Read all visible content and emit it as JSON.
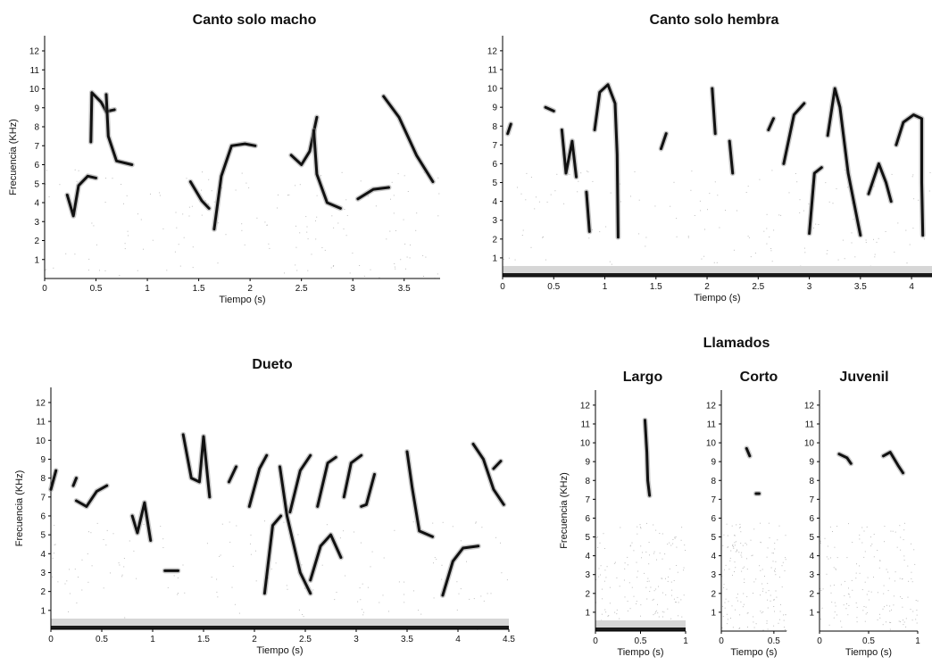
{
  "group_title": "Llamados",
  "chart_data": [
    {
      "type": "spectrogram",
      "title": "Canto solo macho",
      "xlabel": "Tiempo (s)",
      "ylabel": "Frecuencia (KHz)",
      "xlim": [
        0,
        3.85
      ],
      "ylim": [
        0,
        12.8
      ],
      "xticks": [
        "0",
        "0.5",
        "1",
        "1.5",
        "2",
        "2.5",
        "3",
        "3.5"
      ],
      "xtick_values": [
        0,
        0.5,
        1,
        1.5,
        2,
        2.5,
        3,
        3.5
      ],
      "yticks": [
        "1",
        "2",
        "3",
        "4",
        "5",
        "6",
        "7",
        "8",
        "9",
        "10",
        "11",
        "12"
      ],
      "noise_floor": false,
      "notes": [
        {
          "points": [
            [
              0.22,
              4.4
            ],
            [
              0.28,
              3.3
            ],
            [
              0.33,
              4.9
            ],
            [
              0.42,
              5.4
            ],
            [
              0.5,
              5.3
            ]
          ]
        },
        {
          "points": [
            [
              0.45,
              7.2
            ],
            [
              0.46,
              9.8
            ],
            [
              0.55,
              9.3
            ],
            [
              0.6,
              8.8
            ],
            [
              0.68,
              8.9
            ]
          ]
        },
        {
          "points": [
            [
              0.6,
              9.7
            ],
            [
              0.62,
              7.5
            ],
            [
              0.7,
              6.2
            ],
            [
              0.85,
              6.0
            ]
          ]
        },
        {
          "points": [
            [
              1.42,
              5.1
            ],
            [
              1.53,
              4.1
            ],
            [
              1.6,
              3.7
            ]
          ]
        },
        {
          "points": [
            [
              1.65,
              2.6
            ],
            [
              1.72,
              5.4
            ],
            [
              1.82,
              7.0
            ],
            [
              1.95,
              7.1
            ],
            [
              2.05,
              7.0
            ]
          ]
        },
        {
          "points": [
            [
              2.4,
              6.5
            ],
            [
              2.5,
              6.0
            ],
            [
              2.58,
              6.7
            ],
            [
              2.65,
              8.5
            ]
          ]
        },
        {
          "points": [
            [
              2.62,
              7.8
            ],
            [
              2.65,
              5.5
            ],
            [
              2.75,
              4.0
            ],
            [
              2.88,
              3.7
            ]
          ]
        },
        {
          "points": [
            [
              3.05,
              4.2
            ],
            [
              3.2,
              4.7
            ],
            [
              3.35,
              4.8
            ]
          ]
        },
        {
          "points": [
            [
              3.3,
              9.6
            ],
            [
              3.45,
              8.5
            ],
            [
              3.62,
              6.5
            ],
            [
              3.78,
              5.1
            ]
          ]
        }
      ]
    },
    {
      "type": "spectrogram",
      "title": "Canto solo hembra",
      "xlabel": "Tiempo (s)",
      "ylabel": "",
      "xlim": [
        0,
        4.2
      ],
      "ylim": [
        0,
        12.8
      ],
      "xticks": [
        "0",
        "0.5",
        "1",
        "1.5",
        "2",
        "2.5",
        "3",
        "3.5",
        "4"
      ],
      "xtick_values": [
        0,
        0.5,
        1,
        1.5,
        2,
        2.5,
        3,
        3.5,
        4
      ],
      "yticks": [
        "1",
        "2",
        "3",
        "4",
        "5",
        "6",
        "7",
        "8",
        "9",
        "10",
        "11",
        "12"
      ],
      "noise_floor": true,
      "notes": [
        {
          "points": [
            [
              0.05,
              7.6
            ],
            [
              0.08,
              8.1
            ]
          ]
        },
        {
          "points": [
            [
              0.42,
              9.0
            ],
            [
              0.5,
              8.8
            ]
          ]
        },
        {
          "points": [
            [
              0.58,
              7.8
            ],
            [
              0.62,
              5.5
            ],
            [
              0.68,
              7.2
            ],
            [
              0.72,
              5.3
            ]
          ]
        },
        {
          "points": [
            [
              0.82,
              4.5
            ],
            [
              0.85,
              2.4
            ]
          ]
        },
        {
          "points": [
            [
              0.9,
              7.8
            ],
            [
              0.95,
              9.8
            ],
            [
              1.03,
              10.2
            ],
            [
              1.1,
              9.2
            ],
            [
              1.12,
              6.5
            ],
            [
              1.13,
              2.1
            ]
          ]
        },
        {
          "points": [
            [
              1.55,
              6.8
            ],
            [
              1.6,
              7.6
            ]
          ]
        },
        {
          "points": [
            [
              2.05,
              10.0
            ],
            [
              2.08,
              7.6
            ]
          ]
        },
        {
          "points": [
            [
              2.22,
              7.2
            ],
            [
              2.25,
              5.5
            ]
          ]
        },
        {
          "points": [
            [
              2.6,
              7.8
            ],
            [
              2.65,
              8.4
            ]
          ]
        },
        {
          "points": [
            [
              2.75,
              6.0
            ],
            [
              2.85,
              8.6
            ],
            [
              2.95,
              9.2
            ]
          ]
        },
        {
          "points": [
            [
              3.0,
              2.3
            ],
            [
              3.05,
              5.5
            ],
            [
              3.12,
              5.8
            ]
          ]
        },
        {
          "points": [
            [
              3.18,
              7.5
            ],
            [
              3.25,
              10.0
            ],
            [
              3.3,
              9.0
            ],
            [
              3.38,
              5.5
            ],
            [
              3.5,
              2.2
            ]
          ]
        },
        {
          "points": [
            [
              3.58,
              4.4
            ],
            [
              3.68,
              6.0
            ],
            [
              3.75,
              5.0
            ],
            [
              3.8,
              4.0
            ]
          ]
        },
        {
          "points": [
            [
              3.85,
              7.0
            ],
            [
              3.92,
              8.2
            ],
            [
              4.02,
              8.6
            ],
            [
              4.1,
              8.4
            ],
            [
              4.1,
              5.0
            ],
            [
              4.11,
              2.2
            ]
          ]
        }
      ]
    },
    {
      "type": "spectrogram",
      "title": "Dueto",
      "xlabel": "Tiempo (s)",
      "ylabel": "Frecuencia (KHz)",
      "xlim": [
        0,
        4.5
      ],
      "ylim": [
        0,
        12.8
      ],
      "xticks": [
        "0",
        "0.5",
        "1",
        "1.5",
        "2",
        "2.5",
        "3",
        "3.5",
        "4",
        "4.5"
      ],
      "xtick_values": [
        0,
        0.5,
        1,
        1.5,
        2,
        2.5,
        3,
        3.5,
        4,
        4.5
      ],
      "yticks": [
        "1",
        "2",
        "3",
        "4",
        "5",
        "6",
        "7",
        "8",
        "9",
        "10",
        "11",
        "12"
      ],
      "noise_floor": true,
      "notes": [
        {
          "points": [
            [
              0.0,
              7.4
            ],
            [
              0.05,
              8.4
            ]
          ]
        },
        {
          "points": [
            [
              0.22,
              7.6
            ],
            [
              0.25,
              8.0
            ]
          ]
        },
        {
          "points": [
            [
              0.25,
              6.8
            ],
            [
              0.35,
              6.5
            ],
            [
              0.45,
              7.3
            ],
            [
              0.55,
              7.6
            ]
          ]
        },
        {
          "points": [
            [
              0.8,
              6.0
            ],
            [
              0.85,
              5.1
            ],
            [
              0.92,
              6.7
            ],
            [
              0.98,
              4.7
            ]
          ]
        },
        {
          "points": [
            [
              1.12,
              3.1
            ],
            [
              1.25,
              3.1
            ]
          ]
        },
        {
          "points": [
            [
              1.3,
              10.3
            ],
            [
              1.38,
              8.0
            ],
            [
              1.46,
              7.8
            ],
            [
              1.5,
              10.2
            ],
            [
              1.56,
              7.0
            ]
          ]
        },
        {
          "points": [
            [
              1.75,
              7.8
            ],
            [
              1.82,
              8.6
            ]
          ]
        },
        {
          "points": [
            [
              1.95,
              6.5
            ],
            [
              2.05,
              8.5
            ],
            [
              2.12,
              9.2
            ]
          ]
        },
        {
          "points": [
            [
              2.1,
              1.9
            ],
            [
              2.18,
              5.5
            ],
            [
              2.26,
              6.0
            ]
          ]
        },
        {
          "points": [
            [
              2.25,
              8.6
            ],
            [
              2.32,
              6.0
            ],
            [
              2.45,
              3.0
            ],
            [
              2.55,
              1.9
            ]
          ]
        },
        {
          "points": [
            [
              2.35,
              6.2
            ],
            [
              2.45,
              8.4
            ],
            [
              2.55,
              9.2
            ]
          ]
        },
        {
          "points": [
            [
              2.55,
              2.6
            ],
            [
              2.65,
              4.4
            ],
            [
              2.75,
              5.0
            ],
            [
              2.85,
              3.8
            ]
          ]
        },
        {
          "points": [
            [
              2.62,
              6.5
            ],
            [
              2.72,
              8.8
            ],
            [
              2.8,
              9.1
            ]
          ]
        },
        {
          "points": [
            [
              2.88,
              7.0
            ],
            [
              2.95,
              8.8
            ],
            [
              3.05,
              9.2
            ]
          ]
        },
        {
          "points": [
            [
              3.05,
              6.5
            ],
            [
              3.1,
              6.6
            ],
            [
              3.18,
              8.2
            ]
          ]
        },
        {
          "points": [
            [
              3.5,
              9.4
            ],
            [
              3.55,
              7.5
            ],
            [
              3.62,
              5.2
            ],
            [
              3.75,
              4.9
            ]
          ]
        },
        {
          "points": [
            [
              3.85,
              1.8
            ],
            [
              3.95,
              3.6
            ],
            [
              4.05,
              4.3
            ],
            [
              4.2,
              4.4
            ]
          ]
        },
        {
          "points": [
            [
              4.15,
              9.8
            ],
            [
              4.25,
              9.0
            ],
            [
              4.35,
              7.4
            ],
            [
              4.45,
              6.6
            ]
          ]
        },
        {
          "points": [
            [
              4.35,
              8.5
            ],
            [
              4.42,
              8.9
            ]
          ]
        }
      ]
    },
    {
      "type": "spectrogram",
      "title": "Largo",
      "xlabel": "Tiempo (s)",
      "ylabel": "Frecuencia (KHz)",
      "xlim": [
        0,
        1.0
      ],
      "ylim": [
        0,
        12.8
      ],
      "xticks": [
        "0",
        "0.5",
        "1"
      ],
      "xtick_values": [
        0,
        0.5,
        1
      ],
      "yticks": [
        "1",
        "2",
        "3",
        "4",
        "5",
        "6",
        "7",
        "8",
        "9",
        "10",
        "11",
        "12"
      ],
      "noise_floor": true,
      "notes": [
        {
          "points": [
            [
              0.55,
              11.2
            ],
            [
              0.57,
              9.5
            ],
            [
              0.58,
              8.0
            ],
            [
              0.6,
              7.2
            ]
          ]
        }
      ]
    },
    {
      "type": "spectrogram",
      "title": "Corto",
      "xlabel": "Tiempo (s)",
      "ylabel": "",
      "xlim": [
        0,
        0.62
      ],
      "ylim": [
        0,
        12.8
      ],
      "xticks": [
        "0",
        "0.5"
      ],
      "xtick_values": [
        0,
        0.5
      ],
      "yticks": [
        "1",
        "2",
        "3",
        "4",
        "5",
        "6",
        "7",
        "8",
        "9",
        "10",
        "11",
        "12"
      ],
      "noise_floor": false,
      "notes": [
        {
          "points": [
            [
              0.24,
              9.7
            ],
            [
              0.27,
              9.3
            ]
          ]
        },
        {
          "points": [
            [
              0.33,
              7.3
            ],
            [
              0.36,
              7.3
            ]
          ]
        }
      ]
    },
    {
      "type": "spectrogram",
      "title": "Juvenil",
      "xlabel": "Tiempo (s)",
      "ylabel": "",
      "xlim": [
        0,
        1.0
      ],
      "ylim": [
        0,
        12.8
      ],
      "xticks": [
        "0",
        "0.5",
        "1"
      ],
      "xtick_values": [
        0,
        0.5,
        1
      ],
      "yticks": [
        "1",
        "2",
        "3",
        "4",
        "5",
        "6",
        "7",
        "8",
        "9",
        "10",
        "11",
        "12"
      ],
      "noise_floor": false,
      "notes": [
        {
          "points": [
            [
              0.2,
              9.4
            ],
            [
              0.28,
              9.2
            ],
            [
              0.32,
              8.9
            ]
          ]
        },
        {
          "points": [
            [
              0.65,
              9.3
            ],
            [
              0.72,
              9.5
            ],
            [
              0.8,
              8.8
            ],
            [
              0.85,
              8.4
            ]
          ]
        }
      ]
    }
  ]
}
